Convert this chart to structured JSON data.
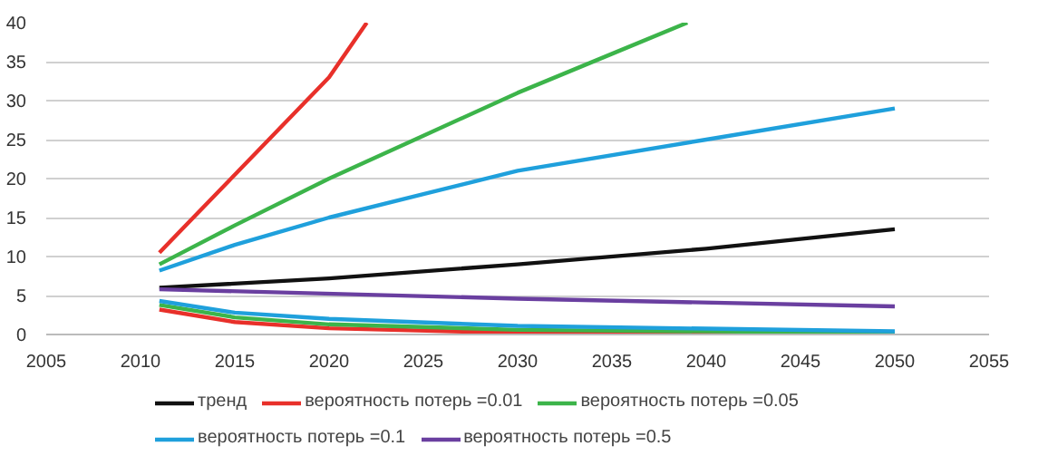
{
  "chart_data": {
    "type": "line",
    "xlim": [
      2005,
      2055
    ],
    "xticks": [
      2005,
      2010,
      2015,
      2020,
      2025,
      2030,
      2035,
      2040,
      2045,
      2050,
      2055
    ],
    "ylim": [
      0,
      40
    ],
    "yticks": [
      0,
      5,
      10,
      15,
      20,
      25,
      30,
      35,
      40
    ],
    "grid": "y",
    "legend": "bottom",
    "marker": "none",
    "line_style": "solid",
    "series": [
      {
        "name": "тренд",
        "color": "#111111",
        "x": [
          2011,
          2020,
          2030,
          2040,
          2050
        ],
        "values": [
          6,
          7.2,
          9,
          11,
          13.5
        ]
      },
      {
        "name": "вероятность потерь =0.01",
        "color": "#e8302a",
        "x": [
          2011,
          2015,
          2020,
          2022
        ],
        "values": [
          10.5,
          20.5,
          33,
          40
        ]
      },
      {
        "name": "вероятность потерь =0.05",
        "color": "#3cb44a",
        "x": [
          2011,
          2015,
          2020,
          2025,
          2030,
          2035,
          2039
        ],
        "values": [
          9,
          14,
          20,
          25.5,
          31,
          36,
          40
        ]
      },
      {
        "name": "вероятность потерь =0.1",
        "color": "#1fa0dc",
        "x": [
          2011,
          2015,
          2020,
          2025,
          2030,
          2040,
          2050
        ],
        "values": [
          8.2,
          11.5,
          15,
          18,
          21,
          25,
          29
        ]
      },
      {
        "name": "вероятность потерь =0.5",
        "color": "#6a3fa0",
        "x": [
          2011,
          2030,
          2050
        ],
        "values": [
          5.8,
          4.6,
          3.6
        ]
      },
      {
        "color": "#e8302a",
        "x": [
          2011,
          2015,
          2020,
          2030,
          2050
        ],
        "values": [
          3.2,
          1.6,
          0.8,
          0.2,
          0
        ]
      },
      {
        "color": "#3cb44a",
        "x": [
          2011,
          2015,
          2020,
          2030,
          2050
        ],
        "values": [
          3.8,
          2.2,
          1.3,
          0.6,
          0.2
        ]
      },
      {
        "color": "#1fa0dc",
        "x": [
          2011,
          2015,
          2020,
          2030,
          2050
        ],
        "values": [
          4.3,
          2.8,
          2,
          1.1,
          0.4
        ]
      }
    ]
  }
}
